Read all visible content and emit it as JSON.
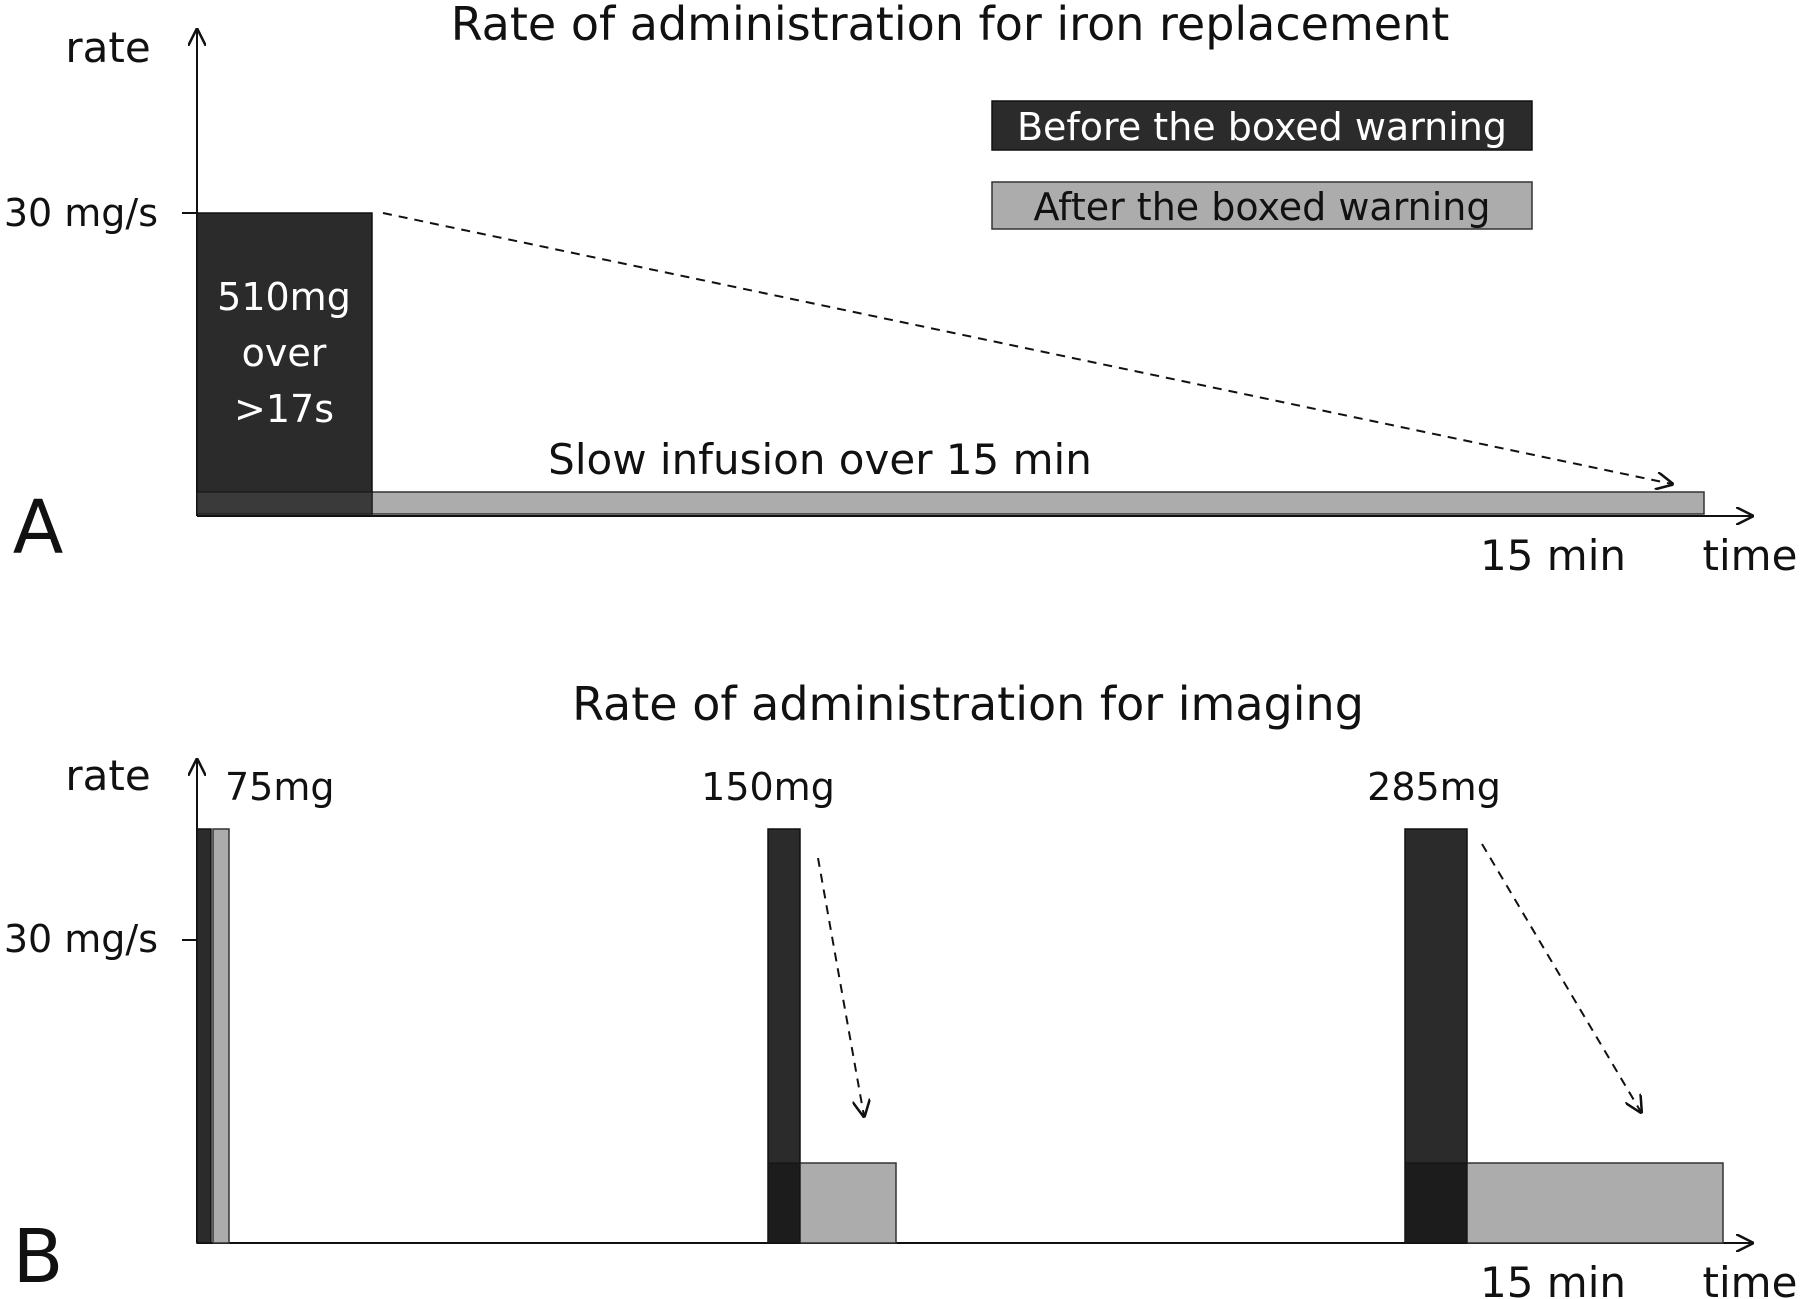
{
  "panel_a": {
    "letter": "A",
    "title": "Rate of administration for iron replacement",
    "y_axis_label": "rate",
    "x_axis_label": "time",
    "y_tick": "30 mg/s",
    "x_tick": "15 min",
    "bolus_text": [
      "510mg",
      "over",
      ">17s"
    ],
    "infusion_text": "Slow infusion over 15 min"
  },
  "panel_b": {
    "letter": "B",
    "title": "Rate of administration for imaging",
    "y_axis_label": "rate",
    "x_axis_label": "time",
    "y_tick": "30 mg/s",
    "x_tick": "15 min",
    "doses": [
      "75mg",
      "150mg",
      "285mg"
    ]
  },
  "legend": {
    "before": "Before the boxed warning",
    "after": "After the boxed warning"
  },
  "colors": {
    "before": "#2b2b2b",
    "after": "#acacac",
    "overlap": "#1c1c1c",
    "axis": "#111111"
  }
}
